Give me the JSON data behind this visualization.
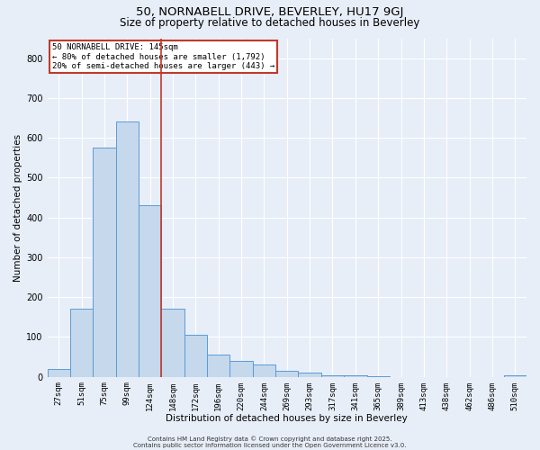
{
  "title": "50, NORNABELL DRIVE, BEVERLEY, HU17 9GJ",
  "subtitle": "Size of property relative to detached houses in Beverley",
  "xlabel": "Distribution of detached houses by size in Beverley",
  "ylabel": "Number of detached properties",
  "categories": [
    "27sqm",
    "51sqm",
    "75sqm",
    "99sqm",
    "124sqm",
    "148sqm",
    "172sqm",
    "196sqm",
    "220sqm",
    "244sqm",
    "269sqm",
    "293sqm",
    "317sqm",
    "341sqm",
    "365sqm",
    "389sqm",
    "413sqm",
    "438sqm",
    "462sqm",
    "486sqm",
    "510sqm"
  ],
  "bar_values": [
    20,
    170,
    575,
    640,
    430,
    170,
    105,
    55,
    40,
    30,
    15,
    10,
    5,
    3,
    1,
    0,
    0,
    0,
    0,
    0,
    5
  ],
  "bar_color": "#c5d8ec",
  "bar_edge_color": "#5b9bd5",
  "vline_x": 4.5,
  "vline_color": "#c0392b",
  "annotation_text": "50 NORNABELL DRIVE: 145sqm\n← 80% of detached houses are smaller (1,792)\n20% of semi-detached houses are larger (443) →",
  "annotation_box_color": "#c0392b",
  "annotation_text_color": "#000000",
  "ylim": [
    0,
    850
  ],
  "yticks": [
    0,
    100,
    200,
    300,
    400,
    500,
    600,
    700,
    800
  ],
  "background_color": "#e8eef8",
  "grid_color": "#ffffff",
  "footer_line1": "Contains HM Land Registry data © Crown copyright and database right 2025.",
  "footer_line2": "Contains public sector information licensed under the Open Government Licence v3.0.",
  "title_fontsize": 9.5,
  "subtitle_fontsize": 8.5,
  "xlabel_fontsize": 7.5,
  "ylabel_fontsize": 7.5,
  "tick_fontsize": 6.5,
  "annotation_fontsize": 6.5,
  "footer_fontsize": 5.0
}
